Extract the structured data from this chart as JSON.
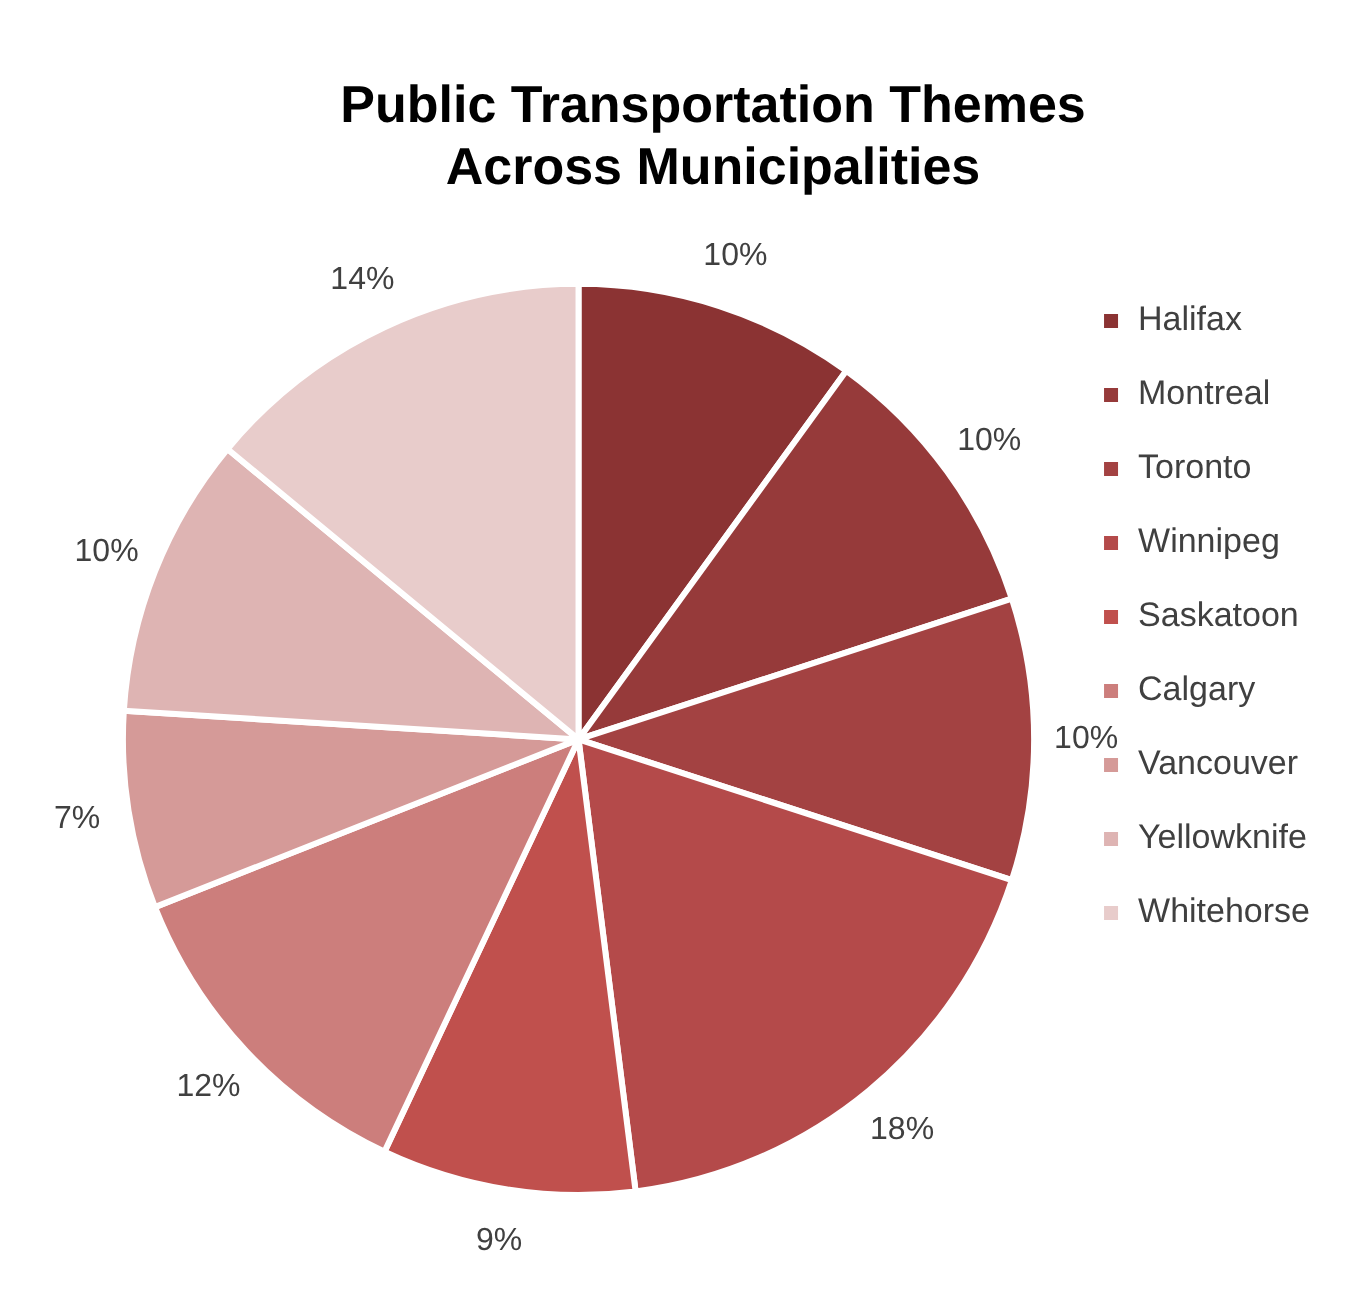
{
  "chart_data": {
    "type": "pie",
    "title": "Public Transportation Themes Across Municipalities",
    "categories": [
      "Halifax",
      "Montreal",
      "Toronto",
      "Winnipeg",
      "Saskatoon",
      "Calgary",
      "Vancouver",
      "Yellowknife",
      "Whitehorse"
    ],
    "values": [
      10,
      10,
      10,
      18,
      9,
      12,
      7,
      10,
      14
    ],
    "colors": [
      "#8b3333",
      "#963a3a",
      "#a34242",
      "#b44a4a",
      "#c0504d",
      "#cc7e7c",
      "#d59a98",
      "#deb4b3",
      "#e8cccb"
    ],
    "value_labels": [
      "10%",
      "10%",
      "10%",
      "18%",
      "9%",
      "12%",
      "7%",
      "10%",
      "14%"
    ],
    "legend": "right"
  }
}
